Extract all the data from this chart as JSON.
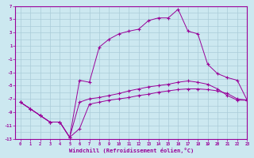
{
  "x_values": [
    0,
    1,
    2,
    3,
    4,
    5,
    6,
    7,
    8,
    9,
    10,
    11,
    12,
    13,
    14,
    15,
    16,
    17,
    18,
    19,
    20,
    21,
    22,
    23
  ],
  "line1": [
    -7.5,
    -8.5,
    -9.5,
    -10.5,
    -10.5,
    -12.8,
    -11.5,
    -7.8,
    -7.5,
    -7.2,
    -7.0,
    -6.8,
    -6.5,
    -6.3,
    -6.0,
    -5.8,
    -5.6,
    -5.5,
    -5.5,
    -5.6,
    -5.8,
    -6.2,
    -7.0,
    -7.2
  ],
  "line2": [
    -7.5,
    -8.5,
    -9.5,
    -10.5,
    -10.5,
    -12.8,
    -7.5,
    -7.0,
    -6.8,
    -6.5,
    -6.2,
    -5.8,
    -5.5,
    -5.2,
    -5.0,
    -4.8,
    -4.5,
    -4.3,
    -4.5,
    -4.8,
    -5.5,
    -6.5,
    -7.2,
    -7.2
  ],
  "line3": [
    -7.5,
    -8.5,
    -9.5,
    -10.5,
    -10.5,
    -12.8,
    -4.2,
    -4.5,
    0.8,
    2.0,
    2.8,
    3.2,
    3.5,
    4.8,
    5.2,
    5.2,
    6.5,
    3.2,
    2.8,
    -1.8,
    -3.2,
    -3.8,
    -4.2,
    -7.2
  ],
  "xlim": [
    -0.5,
    23
  ],
  "ylim": [
    -13,
    7
  ],
  "yticks": [
    7,
    5,
    3,
    1,
    -1,
    -3,
    -5,
    -7,
    -9,
    -11,
    -13
  ],
  "xlabel": "Windchill (Refroidissement éolien,°C)",
  "line_color": "#990099",
  "bg_color": "#cce8f0",
  "grid_color": "#b8d8e8",
  "figsize": [
    3.2,
    2.0
  ],
  "dpi": 100
}
